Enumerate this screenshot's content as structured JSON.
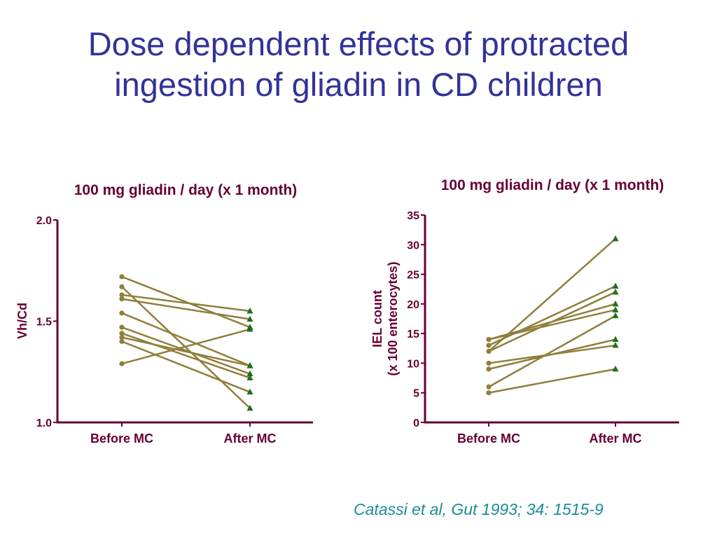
{
  "title_line1": "Dose dependent effects of protracted",
  "title_line2": "ingestion of gliadin in CD children",
  "citation": "Catassi et al, Gut 1993; 34: 1515-9",
  "colors": {
    "title": "#333399",
    "axis": "#660033",
    "line": "#8f7f3c",
    "before_marker": "#8f7f3c",
    "after_marker": "#1f6e1f",
    "citation": "#1a8c99"
  },
  "chart_data": [
    {
      "type": "line",
      "title": "100 mg gliadin / day (x 1 month)",
      "ylabel": "Vh/Cd",
      "xlabel": "",
      "categories": [
        "Before MC",
        "After MC"
      ],
      "ylim": [
        1.0,
        2.0
      ],
      "yticks": [
        1.0,
        1.5,
        2.0
      ],
      "ytick_labels": [
        "1.0",
        "1.5",
        "2.0"
      ],
      "pairs": [
        [
          1.72,
          1.47
        ],
        [
          1.67,
          1.07
        ],
        [
          1.63,
          1.55
        ],
        [
          1.61,
          1.51
        ],
        [
          1.54,
          1.28
        ],
        [
          1.47,
          1.24
        ],
        [
          1.44,
          1.22
        ],
        [
          1.42,
          1.28
        ],
        [
          1.4,
          1.15
        ],
        [
          1.29,
          1.46
        ]
      ]
    },
    {
      "type": "line",
      "title": "100 mg gliadin / day (x 1 month)",
      "ylabel": "IEL count\n(x 100 enterocytes)",
      "ylabel_lines": [
        "IEL count",
        "(x 100 enterocytes)"
      ],
      "xlabel": "",
      "categories": [
        "Before MC",
        "After MC"
      ],
      "ylim": [
        0,
        35
      ],
      "yticks": [
        0,
        5,
        10,
        15,
        20,
        25,
        30,
        35
      ],
      "ytick_labels": [
        "0",
        "5",
        "10",
        "15",
        "20",
        "25",
        "30",
        "35"
      ],
      "pairs": [
        [
          14,
          20
        ],
        [
          14,
          19
        ],
        [
          13,
          23
        ],
        [
          12,
          31
        ],
        [
          12,
          22
        ],
        [
          10,
          13
        ],
        [
          9,
          14
        ],
        [
          6,
          18
        ],
        [
          5,
          9
        ]
      ]
    }
  ]
}
